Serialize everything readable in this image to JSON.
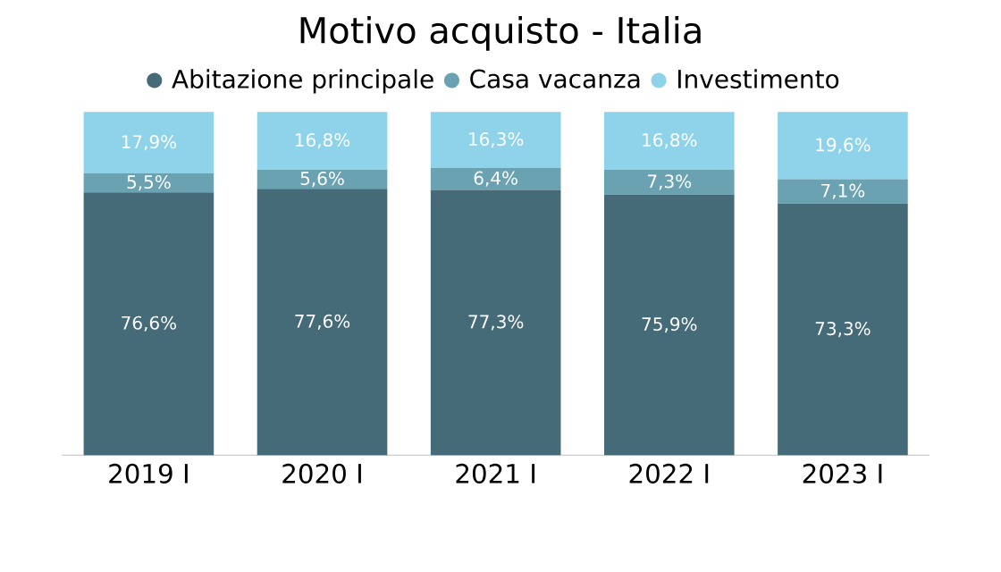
{
  "chart_data": {
    "type": "bar",
    "title": "Motivo acquisto - Italia",
    "stacked": true,
    "legend": "top",
    "categories": [
      "2019 I",
      "2020 I",
      "2021 I",
      "2022 I",
      "2023 I"
    ],
    "series": [
      {
        "name": "Abitazione principale",
        "color": "#466b78",
        "values": [
          76.6,
          77.6,
          77.3,
          75.9,
          73.3
        ],
        "value_labels": [
          "76,6%",
          "77,6%",
          "77,3%",
          "75,9%",
          "73,3%"
        ]
      },
      {
        "name": "Casa vacanza",
        "color": "#6aa2b2",
        "values": [
          5.5,
          5.6,
          6.4,
          7.3,
          7.1
        ],
        "value_labels": [
          "5,5%",
          "5,6%",
          "6,4%",
          "7,3%",
          "7,1%"
        ]
      },
      {
        "name": "Investimento",
        "color": "#8ed3e9",
        "values": [
          17.9,
          16.8,
          16.3,
          16.8,
          19.6
        ],
        "value_labels": [
          "17,9%",
          "16,8%",
          "16,3%",
          "16,8%",
          "19,6%"
        ]
      }
    ]
  }
}
